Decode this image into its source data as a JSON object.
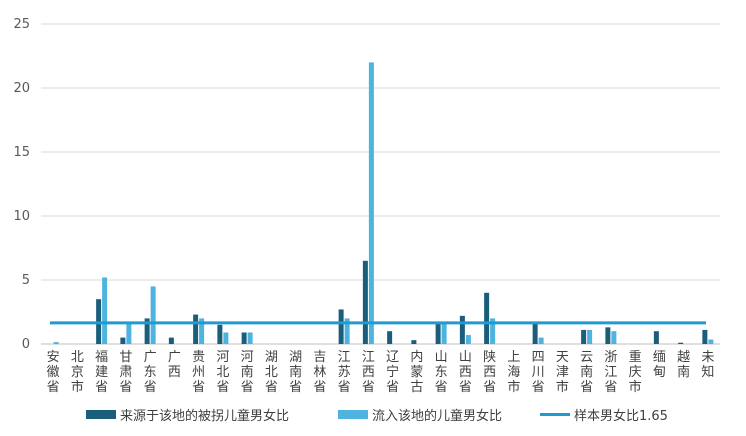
{
  "chart_data": {
    "type": "bar",
    "categories": [
      "安徽省",
      "北京市",
      "福建省",
      "甘肃省",
      "广东省",
      "广西",
      "贵州省",
      "河北省",
      "河南省",
      "湖北省",
      "湖南省",
      "吉林省",
      "江苏省",
      "江西省",
      "辽宁省",
      "内蒙古",
      "山东省",
      "山西省",
      "陕西省",
      "上海市",
      "四川省",
      "天津市",
      "云南省",
      "浙江省",
      "重庆市",
      "缅甸",
      "越南",
      "未知"
    ],
    "series": [
      {
        "name": "来源于该地的被拐儿童男女比",
        "color": "#1a5e7c",
        "values": [
          0,
          0,
          3.5,
          0.5,
          2.0,
          0.5,
          2.3,
          1.5,
          0.9,
          0,
          0,
          0,
          2.7,
          6.5,
          1.0,
          0.3,
          1.6,
          2.2,
          4.0,
          0,
          1.6,
          0,
          1.1,
          1.3,
          0,
          1.0,
          0.1,
          1.1
        ]
      },
      {
        "name": "流入该地的儿童男女比",
        "color": "#4fb3e0",
        "values": [
          0.15,
          0,
          5.2,
          1.6,
          4.5,
          0,
          2.0,
          0.9,
          0.9,
          0,
          0,
          0,
          2.0,
          22.0,
          0,
          0,
          1.6,
          0.7,
          2.0,
          0,
          0.5,
          0,
          1.1,
          1.0,
          0,
          0,
          0,
          0.35
        ]
      }
    ],
    "reference_line": {
      "name": "样本男女比1.65",
      "value": 1.65,
      "color": "#1f9bd1"
    },
    "ylim": [
      0,
      25
    ],
    "yticks": [
      0,
      5,
      10,
      15,
      20,
      25
    ],
    "grid": true,
    "legend_position": "bottom"
  }
}
